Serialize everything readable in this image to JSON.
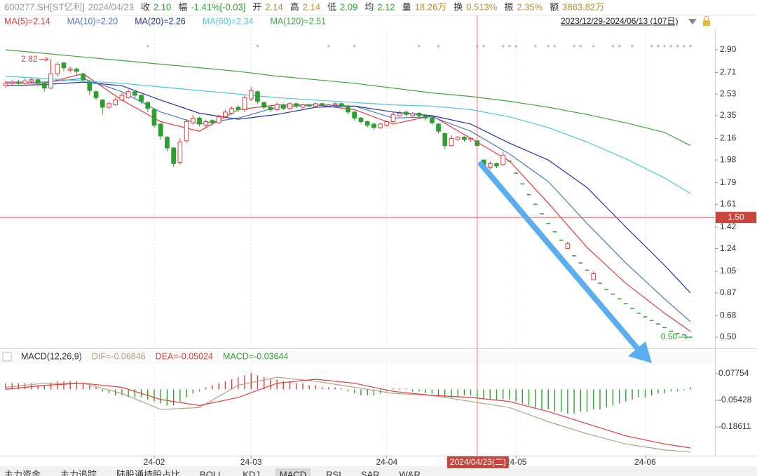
{
  "chart_data": [
    {
      "type": "candlestick",
      "header": [
        {
          "label": "600277.SH[ST亿利]",
          "value": "2024/04/23",
          "color": "#999999"
        },
        {
          "label": "收",
          "value": "2.10",
          "color": "#2e9e2e"
        },
        {
          "label": "幅",
          "value": "-1.41%[-0.03]",
          "color": "#2e9e2e"
        },
        {
          "label": "开",
          "value": "2.14",
          "color": "#b5912f"
        },
        {
          "label": "高",
          "value": "2.14",
          "color": "#b5912f"
        },
        {
          "label": "低",
          "value": "2.09",
          "color": "#2e9e2e"
        },
        {
          "label": "均",
          "value": "2.12",
          "color": "#2e9e2e"
        },
        {
          "label": "量",
          "value": "18.26万",
          "color": "#b5912f"
        },
        {
          "label": "换",
          "value": "0.513%",
          "color": "#b5912f"
        },
        {
          "label": "振",
          "value": "2.35%",
          "color": "#b5912f"
        },
        {
          "label": "额",
          "value": "3863.82万",
          "color": "#b5912f"
        }
      ],
      "date_range": "2023/12/29-2024/06/13 (107日)",
      "up_color": "#e03b3b",
      "down_color": "#2e9e2e",
      "open": [
        2.6,
        2.62,
        2.63,
        2.62,
        2.64,
        2.65,
        2.62,
        2.58,
        2.7,
        2.79,
        2.73,
        2.74,
        2.7,
        2.63,
        2.55,
        2.48,
        2.42,
        2.44,
        2.48,
        2.5,
        2.55,
        2.52,
        2.46,
        2.4,
        2.28,
        2.17,
        2.08,
        1.96,
        2.14,
        2.29,
        2.33,
        2.27,
        2.31,
        2.29,
        2.34,
        2.37,
        2.42,
        2.4,
        2.49,
        2.55,
        2.46,
        2.42,
        2.4,
        2.44,
        2.41,
        2.45,
        2.42,
        2.44,
        2.43,
        2.45,
        2.43,
        2.44,
        2.45,
        2.43,
        2.38,
        2.33,
        2.3,
        2.28,
        2.25,
        2.27,
        2.3,
        2.35,
        2.38,
        2.35,
        2.37,
        2.35,
        2.33,
        2.28,
        2.2,
        2.1,
        2.15,
        2.17,
        2.15,
        2.14,
        1.98,
        1.92,
        1.95,
        1.94,
        1.97,
        1.87,
        1.78,
        1.69,
        1.61,
        1.53,
        1.45,
        1.38,
        1.31,
        1.24,
        1.18,
        1.12,
        1.06,
        0.98,
        0.95,
        0.9,
        0.86,
        0.82,
        0.78,
        0.74,
        0.7,
        0.67,
        0.64,
        0.61,
        0.58,
        0.55,
        0.53,
        0.52,
        0.5
      ],
      "high": [
        2.64,
        2.65,
        2.65,
        2.66,
        2.67,
        2.66,
        2.63,
        2.82,
        2.8,
        2.8,
        2.76,
        2.75,
        2.71,
        2.64,
        2.56,
        2.49,
        2.47,
        2.5,
        2.54,
        2.57,
        2.56,
        2.53,
        2.47,
        2.41,
        2.29,
        2.18,
        2.09,
        2.16,
        2.32,
        2.36,
        2.34,
        2.32,
        2.32,
        2.36,
        2.4,
        2.43,
        2.44,
        2.52,
        2.59,
        2.56,
        2.47,
        2.43,
        2.46,
        2.45,
        2.46,
        2.46,
        2.45,
        2.45,
        2.46,
        2.46,
        2.45,
        2.46,
        2.46,
        2.44,
        2.39,
        2.34,
        2.31,
        2.29,
        2.29,
        2.31,
        2.38,
        2.39,
        2.39,
        2.38,
        2.38,
        2.36,
        2.34,
        2.29,
        2.21,
        2.19,
        2.18,
        2.18,
        2.17,
        2.14,
        1.98,
        1.97,
        1.96,
        2.05,
        1.97,
        1.87,
        1.78,
        1.69,
        1.61,
        1.53,
        1.45,
        1.38,
        1.31,
        1.3,
        1.18,
        1.12,
        1.06,
        1.05,
        0.95,
        0.9,
        0.86,
        0.82,
        0.78,
        0.74,
        0.7,
        0.67,
        0.64,
        0.61,
        0.58,
        0.55,
        0.53,
        0.52,
        0.5
      ],
      "low": [
        2.58,
        2.6,
        2.6,
        2.61,
        2.62,
        2.6,
        2.55,
        2.57,
        2.68,
        2.72,
        2.71,
        2.69,
        2.63,
        2.52,
        2.48,
        2.36,
        2.4,
        2.43,
        2.47,
        2.49,
        2.5,
        2.45,
        2.38,
        2.25,
        2.15,
        2.05,
        1.92,
        1.94,
        2.12,
        2.27,
        2.26,
        2.25,
        2.27,
        2.28,
        2.33,
        2.36,
        2.38,
        2.38,
        2.47,
        2.45,
        2.4,
        2.38,
        2.39,
        2.4,
        2.4,
        2.41,
        2.41,
        2.42,
        2.42,
        2.43,
        2.42,
        2.43,
        2.42,
        2.36,
        2.31,
        2.28,
        2.25,
        2.23,
        2.24,
        2.26,
        2.29,
        2.34,
        2.34,
        2.34,
        2.33,
        2.31,
        2.27,
        2.2,
        2.07,
        2.09,
        2.14,
        2.13,
        2.13,
        2.09,
        1.9,
        1.9,
        1.91,
        1.93,
        1.97,
        1.87,
        1.78,
        1.69,
        1.61,
        1.53,
        1.45,
        1.38,
        1.31,
        1.24,
        1.18,
        1.12,
        1.06,
        0.98,
        0.95,
        0.9,
        0.86,
        0.82,
        0.78,
        0.74,
        0.7,
        0.67,
        0.64,
        0.61,
        0.58,
        0.55,
        0.53,
        0.52,
        0.5
      ],
      "close": [
        2.62,
        2.63,
        2.62,
        2.64,
        2.65,
        2.62,
        2.58,
        2.7,
        2.78,
        2.75,
        2.74,
        2.72,
        2.65,
        2.56,
        2.5,
        2.42,
        2.45,
        2.48,
        2.52,
        2.55,
        2.52,
        2.47,
        2.41,
        2.27,
        2.18,
        2.08,
        1.95,
        2.13,
        2.3,
        2.33,
        2.28,
        2.3,
        2.29,
        2.34,
        2.38,
        2.41,
        2.4,
        2.5,
        2.56,
        2.47,
        2.42,
        2.4,
        2.44,
        2.41,
        2.45,
        2.43,
        2.44,
        2.43,
        2.45,
        2.44,
        2.44,
        2.45,
        2.43,
        2.38,
        2.33,
        2.3,
        2.27,
        2.25,
        2.28,
        2.3,
        2.36,
        2.37,
        2.36,
        2.37,
        2.35,
        2.33,
        2.29,
        2.22,
        2.1,
        2.16,
        2.17,
        2.15,
        2.16,
        2.1,
        1.92,
        1.95,
        1.93,
        2.02,
        1.97,
        1.87,
        1.78,
        1.69,
        1.61,
        1.53,
        1.45,
        1.38,
        1.31,
        1.28,
        1.18,
        1.12,
        1.06,
        1.03,
        0.95,
        0.9,
        0.86,
        0.82,
        0.78,
        0.74,
        0.7,
        0.67,
        0.64,
        0.61,
        0.58,
        0.55,
        0.53,
        0.52,
        0.5
      ],
      "series": [
        {
          "name": "MA(5)=2.14",
          "color": "#e03b3b",
          "x": [
            0,
            6,
            12,
            18,
            24,
            30,
            36,
            42,
            48,
            54,
            60,
            66,
            72,
            78,
            84,
            90,
            96,
            102,
            106
          ],
          "values": [
            2.62,
            2.62,
            2.7,
            2.48,
            2.3,
            2.22,
            2.4,
            2.44,
            2.44,
            2.4,
            2.28,
            2.35,
            2.16,
            1.97,
            1.62,
            1.25,
            0.95,
            0.7,
            0.55
          ]
        },
        {
          "name": "MA(10)=2.20",
          "color": "#4a78c0",
          "x": [
            0,
            6,
            12,
            18,
            24,
            30,
            36,
            42,
            48,
            54,
            60,
            66,
            72,
            78,
            84,
            90,
            96,
            102,
            106
          ],
          "values": [
            2.63,
            2.63,
            2.66,
            2.55,
            2.38,
            2.28,
            2.33,
            2.42,
            2.44,
            2.43,
            2.33,
            2.34,
            2.22,
            2.03,
            1.8,
            1.45,
            1.12,
            0.82,
            0.63
          ]
        },
        {
          "name": "MA(20)=2.26",
          "color": "#2233aa",
          "x": [
            0,
            6,
            12,
            18,
            24,
            30,
            36,
            42,
            48,
            54,
            60,
            66,
            72,
            78,
            84,
            90,
            96,
            102,
            106
          ],
          "values": [
            2.6,
            2.61,
            2.63,
            2.6,
            2.48,
            2.37,
            2.32,
            2.36,
            2.42,
            2.43,
            2.38,
            2.35,
            2.28,
            2.12,
            1.98,
            1.75,
            1.42,
            1.1,
            0.87
          ]
        },
        {
          "name": "MA(60)=2.34",
          "color": "#4cc3e8",
          "x": [
            0,
            6,
            12,
            18,
            24,
            30,
            36,
            42,
            48,
            54,
            60,
            66,
            72,
            78,
            84,
            90,
            96,
            102,
            106
          ],
          "values": [
            2.68,
            2.66,
            2.64,
            2.62,
            2.59,
            2.56,
            2.53,
            2.5,
            2.48,
            2.46,
            2.44,
            2.43,
            2.4,
            2.34,
            2.25,
            2.13,
            1.99,
            1.83,
            1.7
          ]
        },
        {
          "name": "MA(120)=2.51",
          "color": "#3aa83a",
          "x": [
            0,
            6,
            12,
            18,
            24,
            30,
            36,
            42,
            48,
            54,
            60,
            66,
            72,
            78,
            84,
            90,
            96,
            102,
            106
          ],
          "values": [
            2.9,
            2.87,
            2.84,
            2.81,
            2.78,
            2.75,
            2.72,
            2.68,
            2.65,
            2.62,
            2.58,
            2.54,
            2.51,
            2.47,
            2.42,
            2.36,
            2.29,
            2.21,
            2.1
          ]
        }
      ],
      "event_markers": {
        "symbol": "*",
        "color": "#b09a7a",
        "indices": [
          22,
          39,
          50,
          54,
          64,
          67,
          73,
          74,
          77,
          78,
          79,
          82,
          84,
          85,
          88,
          89,
          91,
          94,
          95,
          97,
          100,
          101,
          102,
          103,
          104,
          105,
          106
        ]
      },
      "annotations": [
        {
          "text": "2.82",
          "index": 7,
          "value": 2.82,
          "color": "#e03b3b"
        },
        {
          "text": "0.50",
          "index": 106,
          "value": 0.5,
          "color": "#2e9e2e"
        }
      ],
      "crosshair": {
        "index": 73,
        "date_label": "2024/04/23(二)",
        "price": 1.5,
        "price_label": "1.50",
        "color": "#d9534f"
      },
      "xlim": [
        -0.5,
        106.5
      ],
      "xticks": [
        {
          "value": 23,
          "label": "24-02"
        },
        {
          "value": 38,
          "label": "24-03"
        },
        {
          "value": 59,
          "label": "24-04"
        },
        {
          "value": 79,
          "label": "24-05"
        },
        {
          "value": 99,
          "label": "24-06"
        }
      ],
      "ylim": [
        0.418,
        3.023
      ],
      "yticks": [
        {
          "value": 2.9,
          "label": "2.90"
        },
        2.71,
        2.53,
        2.35,
        2.16,
        1.98,
        1.79,
        1.61,
        1.42,
        1.24,
        1.05,
        0.87,
        0.68,
        {
          "value": 0.5,
          "label": "0.50"
        }
      ],
      "tabs": [
        "主力资金",
        "主力追踪",
        "陆股通持股占比",
        "BOLL",
        "KDJ",
        "MACD",
        "RSI",
        "SAR",
        "W&R"
      ],
      "active_tab": 5
    },
    {
      "type": "macd",
      "title": "MACD(12,26,9)",
      "series": [
        {
          "name": "DIF=-0.06846",
          "color": "#b0a080",
          "x": [
            0,
            6,
            12,
            18,
            24,
            30,
            36,
            42,
            48,
            54,
            60,
            66,
            72,
            78,
            84,
            90,
            96,
            102,
            106
          ],
          "values": [
            0.01,
            0.03,
            0.03,
            -0.02,
            -0.1,
            -0.09,
            0.02,
            0.06,
            0.04,
            0.01,
            -0.02,
            -0.03,
            -0.06,
            -0.09,
            -0.16,
            -0.22,
            -0.27,
            -0.3,
            -0.31
          ]
        },
        {
          "name": "DEA=-0.05024",
          "color": "#e03b3b",
          "x": [
            0,
            6,
            12,
            18,
            24,
            30,
            36,
            42,
            48,
            54,
            60,
            66,
            72,
            78,
            84,
            90,
            96,
            102,
            106
          ],
          "values": [
            0.0,
            0.02,
            0.03,
            0.01,
            -0.05,
            -0.08,
            -0.04,
            0.03,
            0.05,
            0.03,
            -0.01,
            -0.03,
            -0.04,
            -0.06,
            -0.11,
            -0.17,
            -0.23,
            -0.27,
            -0.29
          ]
        }
      ],
      "histogram": {
        "name": "MACD=-0.03644",
        "color": "#2e9e2e",
        "up_color": "#e03b3b",
        "down_color": "#2e9e2e",
        "values": [
          0.03,
          0.03,
          0.03,
          0.03,
          0.03,
          0.02,
          0.02,
          0.03,
          0.04,
          0.04,
          0.04,
          0.04,
          0.03,
          0.02,
          0.01,
          -0.01,
          -0.02,
          -0.03,
          -0.03,
          -0.04,
          -0.04,
          -0.04,
          -0.05,
          -0.06,
          -0.07,
          -0.08,
          -0.08,
          -0.06,
          -0.04,
          -0.02,
          -0.01,
          0.01,
          0.02,
          0.03,
          0.04,
          0.05,
          0.06,
          0.07,
          0.08,
          0.07,
          0.06,
          0.05,
          0.05,
          0.04,
          0.04,
          0.03,
          0.03,
          0.02,
          0.02,
          0.01,
          0.01,
          0.01,
          0.005,
          -0.01,
          -0.02,
          -0.03,
          -0.03,
          -0.03,
          -0.02,
          -0.01,
          0.005,
          0.005,
          0.005,
          -0.01,
          -0.01,
          -0.02,
          -0.02,
          -0.03,
          -0.04,
          -0.04,
          -0.04,
          -0.03,
          -0.03,
          -0.04,
          -0.05,
          -0.05,
          -0.05,
          -0.05,
          -0.05,
          -0.06,
          -0.07,
          -0.08,
          -0.09,
          -0.1,
          -0.1,
          -0.11,
          -0.11,
          -0.12,
          -0.12,
          -0.11,
          -0.11,
          -0.1,
          -0.1,
          -0.09,
          -0.08,
          -0.07,
          -0.06,
          -0.05,
          -0.04,
          -0.04,
          -0.03,
          -0.02,
          -0.02,
          -0.01,
          -0.01,
          -0.005,
          0.01
        ]
      },
      "ylim": [
        -0.328,
        0.1296
      ],
      "yticks": [
        0.07754,
        -0.05428,
        -0.18611
      ]
    }
  ]
}
